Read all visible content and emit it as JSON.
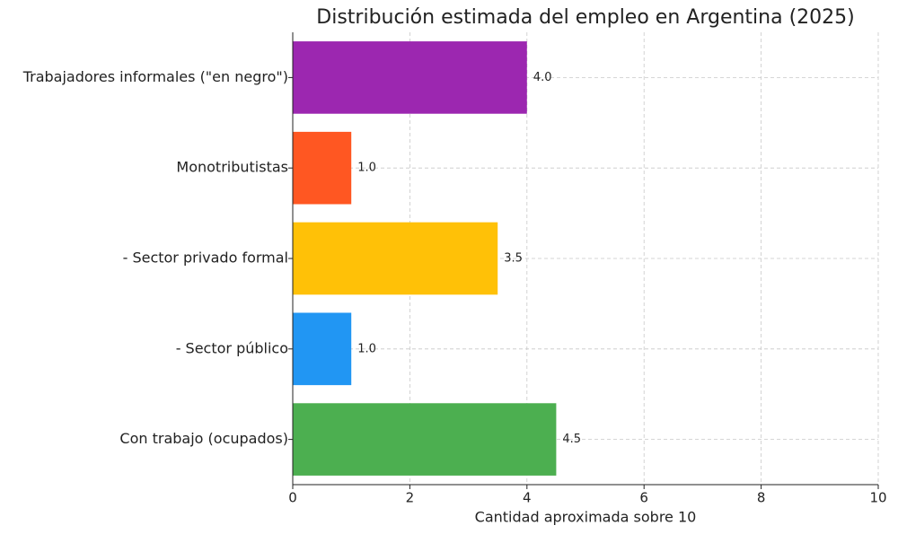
{
  "chart_data": {
    "type": "barh",
    "title": "Distribución estimada del empleo en Argentina (2025)",
    "x_label": "Cantidad aproximada sobre 10",
    "categories": [
      "Con trabajo (ocupados)",
      "- Sector público",
      "- Sector privado formal",
      "Monotributistas",
      "Trabajadores informales (\"en negro\")"
    ],
    "values": [
      4.5,
      1,
      3.5,
      1,
      4
    ],
    "value_labels": [
      "4.5",
      "1.0",
      "3.5",
      "1.0",
      "4.0"
    ],
    "colors": [
      "#4caf50",
      "#2196f3",
      "#ffc107",
      "#ff5722",
      "#9c27b0"
    ],
    "xlim": [
      0,
      10
    ],
    "xticks": [
      0,
      2,
      4,
      6,
      8,
      10
    ],
    "grid": true
  }
}
